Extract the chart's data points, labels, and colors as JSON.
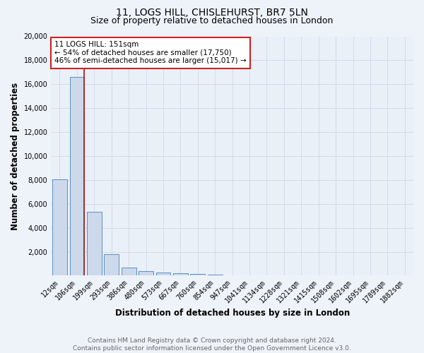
{
  "title_line1": "11, LOGS HILL, CHISLEHURST, BR7 5LN",
  "title_line2": "Size of property relative to detached houses in London",
  "xlabel": "Distribution of detached houses by size in London",
  "ylabel": "Number of detached properties",
  "bar_labels": [
    "12sqm",
    "106sqm",
    "199sqm",
    "293sqm",
    "386sqm",
    "480sqm",
    "573sqm",
    "667sqm",
    "760sqm",
    "854sqm",
    "947sqm",
    "1041sqm",
    "1134sqm",
    "1228sqm",
    "1321sqm",
    "1415sqm",
    "1508sqm",
    "1602sqm",
    "1695sqm",
    "1789sqm",
    "1882sqm"
  ],
  "bar_values": [
    8050,
    16600,
    5350,
    1820,
    700,
    380,
    235,
    175,
    130,
    100,
    0,
    0,
    0,
    0,
    0,
    0,
    0,
    0,
    0,
    0,
    0
  ],
  "bar_color": "#ccd9ea",
  "bar_edge_color": "#5b8fc4",
  "marker_color": "#aa1111",
  "annotation_line1": "11 LOGS HILL: 151sqm",
  "annotation_line2": "← 54% of detached houses are smaller (17,750)",
  "annotation_line3": "46% of semi-detached houses are larger (15,017) →",
  "annotation_box_color": "#ffffff",
  "annotation_box_edge": "#cc2222",
  "ylim": [
    0,
    20000
  ],
  "yticks": [
    0,
    2000,
    4000,
    6000,
    8000,
    10000,
    12000,
    14000,
    16000,
    18000,
    20000
  ],
  "footer_line1": "Contains HM Land Registry data © Crown copyright and database right 2024.",
  "footer_line2": "Contains public sector information licensed under the Open Government Licence v3.0.",
  "bg_color": "#eef3f9",
  "plot_bg_color": "#eaf0f8",
  "grid_color": "#d0d8e8",
  "title_fontsize": 10,
  "subtitle_fontsize": 9,
  "axis_label_fontsize": 8.5,
  "tick_fontsize": 7,
  "footer_fontsize": 6.5
}
